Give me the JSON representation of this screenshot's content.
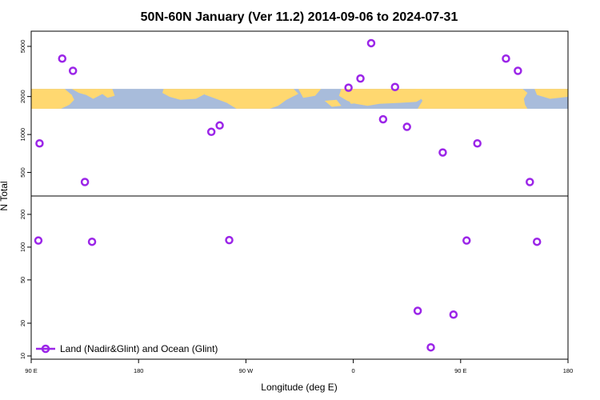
{
  "chart_data": {
    "type": "scatter",
    "title": "50N-60N January (Ver 11.2)   2014-09-06 to 2024-07-31",
    "xlabel": "Longitude (deg E)",
    "ylabel": "N Total",
    "x_ticks": [
      {
        "lon": 90,
        "label": "90 E"
      },
      {
        "lon": 180,
        "label": "180"
      },
      {
        "lon": 270,
        "label": "90 W"
      },
      {
        "lon": 360,
        "label": "0"
      },
      {
        "lon": 450,
        "label": "90 E"
      },
      {
        "lon": 540,
        "label": "180"
      }
    ],
    "xlim": [
      90,
      540
    ],
    "panels": [
      {
        "name": "upper",
        "scale": "log",
        "ylim": [
          330,
          6500
        ],
        "y_ticks": [
          500,
          1000,
          2000,
          5000
        ]
      },
      {
        "name": "lower",
        "scale": "log",
        "ylim": [
          9.5,
          290
        ],
        "y_ticks": [
          10,
          20,
          50,
          100,
          200
        ]
      }
    ],
    "series": [
      {
        "name": "Land (Nadir&Glint) and Ocean (Glint)",
        "color": "#9b25e8",
        "marker": "open-circle",
        "points": [
          {
            "lon": 97,
            "n": 850
          },
          {
            "lon": 116,
            "n": 4000
          },
          {
            "lon": 125,
            "n": 3200
          },
          {
            "lon": 135,
            "n": 420
          },
          {
            "lon": 241,
            "n": 1050
          },
          {
            "lon": 248,
            "n": 1180
          },
          {
            "lon": 356,
            "n": 2350
          },
          {
            "lon": 366,
            "n": 2780
          },
          {
            "lon": 375,
            "n": 5300
          },
          {
            "lon": 385,
            "n": 1320
          },
          {
            "lon": 395,
            "n": 2380
          },
          {
            "lon": 405,
            "n": 1150
          },
          {
            "lon": 435,
            "n": 720
          },
          {
            "lon": 464,
            "n": 850
          },
          {
            "lon": 488,
            "n": 4000
          },
          {
            "lon": 498,
            "n": 3200
          },
          {
            "lon": 508,
            "n": 420
          },
          {
            "lon": 96,
            "n": 115
          },
          {
            "lon": 141,
            "n": 112
          },
          {
            "lon": 256,
            "n": 116
          },
          {
            "lon": 414,
            "n": 26
          },
          {
            "lon": 425,
            "n": 12
          },
          {
            "lon": 444,
            "n": 24
          },
          {
            "lon": 455,
            "n": 115
          },
          {
            "lon": 514,
            "n": 112
          }
        ]
      }
    ],
    "map_strip": {
      "land_color": "#ffd870",
      "ocean_color": "#a8bcdb",
      "n_range": [
        1600,
        2300
      ]
    },
    "legend": {
      "position": "bottom-left",
      "label": "Land (Nadir&Glint) and Ocean (Glint)"
    },
    "grid": false
  }
}
